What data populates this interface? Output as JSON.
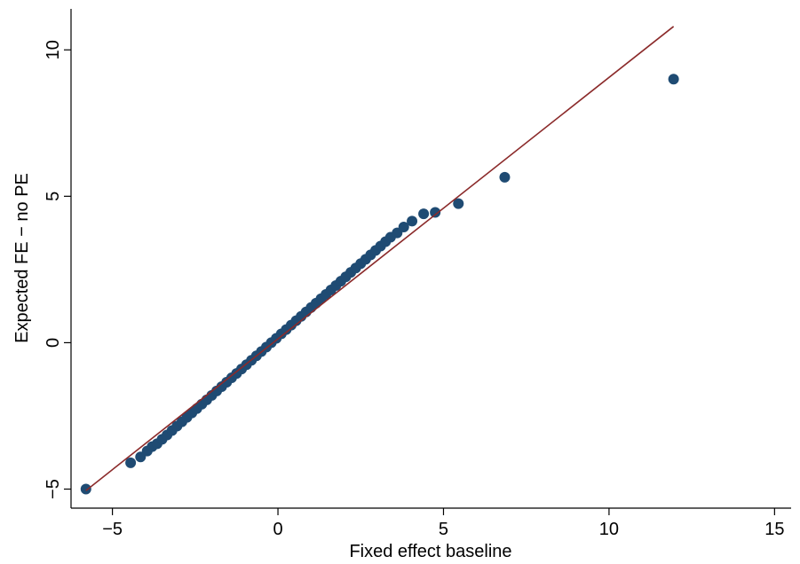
{
  "chart_data": {
    "type": "scatter",
    "title": "",
    "xlabel": "Fixed effect baseline",
    "ylabel": "Expected FE − no PE",
    "xlim": [
      -6.25,
      15.5
    ],
    "ylim": [
      -5.65,
      11.4
    ],
    "xticks": [
      -5,
      0,
      5,
      10,
      15
    ],
    "yticks": [
      -5,
      0,
      5,
      10
    ],
    "xtick_labels": [
      "−5",
      "0",
      "5",
      "10",
      "15"
    ],
    "ytick_labels": [
      "−5",
      "0",
      "5",
      "10"
    ],
    "grid": false,
    "legend": "none",
    "point_color": "#1f4b73",
    "line_color": "#8b2a2a",
    "fit_line": {
      "x": [
        -5.8,
        11.95
      ],
      "y": [
        -5.05,
        10.8
      ]
    },
    "series": [
      {
        "points": [
          [
            -5.8,
            -5.0
          ],
          [
            -4.45,
            -4.1
          ],
          [
            -4.15,
            -3.9
          ],
          [
            -3.95,
            -3.7
          ],
          [
            -3.8,
            -3.55
          ],
          [
            -3.65,
            -3.45
          ],
          [
            -3.5,
            -3.3
          ],
          [
            -3.35,
            -3.15
          ],
          [
            -3.2,
            -3.0
          ],
          [
            -3.05,
            -2.85
          ],
          [
            -2.9,
            -2.7
          ],
          [
            -2.75,
            -2.55
          ],
          [
            -2.6,
            -2.4
          ],
          [
            -2.45,
            -2.25
          ],
          [
            -2.3,
            -2.1
          ],
          [
            -2.15,
            -1.95
          ],
          [
            -2.0,
            -1.8
          ],
          [
            -1.85,
            -1.65
          ],
          [
            -1.7,
            -1.5
          ],
          [
            -1.55,
            -1.35
          ],
          [
            -1.4,
            -1.2
          ],
          [
            -1.25,
            -1.05
          ],
          [
            -1.1,
            -0.9
          ],
          [
            -0.95,
            -0.75
          ],
          [
            -0.8,
            -0.6
          ],
          [
            -0.65,
            -0.45
          ],
          [
            -0.5,
            -0.3
          ],
          [
            -0.35,
            -0.15
          ],
          [
            -0.2,
            0.0
          ],
          [
            -0.05,
            0.15
          ],
          [
            0.1,
            0.3
          ],
          [
            0.25,
            0.45
          ],
          [
            0.4,
            0.6
          ],
          [
            0.55,
            0.75
          ],
          [
            0.7,
            0.9
          ],
          [
            0.85,
            1.05
          ],
          [
            1.0,
            1.2
          ],
          [
            1.15,
            1.35
          ],
          [
            1.3,
            1.5
          ],
          [
            1.45,
            1.65
          ],
          [
            1.6,
            1.8
          ],
          [
            1.75,
            1.95
          ],
          [
            1.9,
            2.1
          ],
          [
            2.05,
            2.25
          ],
          [
            2.2,
            2.4
          ],
          [
            2.35,
            2.55
          ],
          [
            2.5,
            2.7
          ],
          [
            2.65,
            2.85
          ],
          [
            2.8,
            3.0
          ],
          [
            2.95,
            3.15
          ],
          [
            3.1,
            3.3
          ],
          [
            3.25,
            3.45
          ],
          [
            3.4,
            3.6
          ],
          [
            3.6,
            3.75
          ],
          [
            3.8,
            3.95
          ],
          [
            4.05,
            4.15
          ],
          [
            4.4,
            4.4
          ],
          [
            4.75,
            4.45
          ],
          [
            5.45,
            4.75
          ],
          [
            6.85,
            5.65
          ],
          [
            11.95,
            9.0
          ]
        ]
      }
    ]
  }
}
